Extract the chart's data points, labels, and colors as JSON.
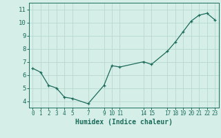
{
  "x": [
    0,
    1,
    2,
    3,
    4,
    5,
    7,
    9,
    10,
    11,
    14,
    15,
    17,
    18,
    19,
    20,
    21,
    22,
    23
  ],
  "y": [
    6.5,
    6.2,
    5.2,
    5.0,
    4.3,
    4.2,
    3.8,
    5.2,
    6.7,
    6.6,
    7.0,
    6.8,
    7.8,
    8.5,
    9.3,
    10.1,
    10.55,
    10.7,
    10.2
  ],
  "xticks": [
    0,
    1,
    2,
    3,
    4,
    5,
    7,
    9,
    10,
    11,
    14,
    15,
    17,
    18,
    19,
    20,
    21,
    22,
    23
  ],
  "yticks": [
    4,
    5,
    6,
    7,
    8,
    9,
    10,
    11
  ],
  "xlabel": "Humidex (Indice chaleur)",
  "ylim": [
    3.5,
    11.5
  ],
  "xlim": [
    -0.5,
    23.5
  ],
  "line_color": "#1a6b5a",
  "marker_color": "#1a6b5a",
  "bg_color": "#d6eee8",
  "grid_color": "#b8d8d0",
  "tick_color": "#1a6b5a",
  "label_color": "#1a6b5a"
}
